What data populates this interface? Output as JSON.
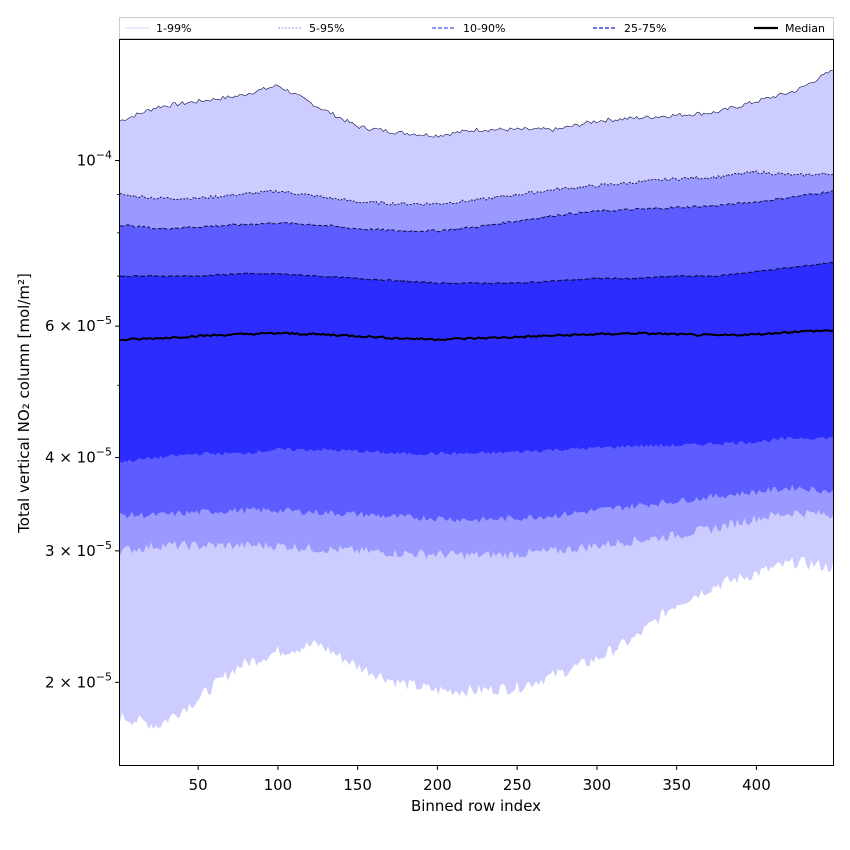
{
  "chart_data": {
    "type": "area",
    "xlabel": "Binned row index",
    "ylabel": "Total vertical NO₂ column [mol/m²]",
    "xlim": [
      1,
      448
    ],
    "ylim": [
      1.55e-05,
      0.000145
    ],
    "yscale": "log",
    "grid": false,
    "legend_position": "top",
    "x_ticks": [
      50,
      100,
      150,
      200,
      250,
      300,
      350,
      400
    ],
    "x_tick_labels": [
      "50",
      "100",
      "150",
      "200",
      "250",
      "300",
      "350",
      "400"
    ],
    "y_ticks": [
      {
        "value": 0.0001,
        "base": "10",
        "exp": "−4"
      },
      {
        "value": 6e-05,
        "base": "6 × 10",
        "exp": "−5"
      },
      {
        "value": 4e-05,
        "base": "4 × 10",
        "exp": "−5"
      },
      {
        "value": 3e-05,
        "base": "3 × 10",
        "exp": "−5"
      },
      {
        "value": 2e-05,
        "base": "2 × 10",
        "exp": "−5"
      }
    ],
    "x": [
      1,
      25,
      50,
      75,
      100,
      125,
      150,
      175,
      200,
      225,
      250,
      275,
      300,
      325,
      350,
      375,
      400,
      425,
      448
    ],
    "bands": [
      {
        "name": "1-99%",
        "color": "#ccccff",
        "upper": [
          0.000113,
          0.000118,
          0.00012,
          0.000122,
          0.000126,
          0.000118,
          0.000111,
          0.000109,
          0.000108,
          0.00011,
          0.00011,
          0.00011,
          0.000113,
          0.000114,
          0.000115,
          0.000116,
          0.00012,
          0.000124,
          0.000132
        ],
        "lower": [
          1.8e-05,
          1.75e-05,
          1.9e-05,
          2.1e-05,
          2.2e-05,
          2.25e-05,
          2.1e-05,
          2e-05,
          1.95e-05,
          1.95e-05,
          1.97e-05,
          2.05e-05,
          2.15e-05,
          2.3e-05,
          2.55e-05,
          2.7e-05,
          2.8e-05,
          2.9e-05,
          2.85e-05
        ]
      },
      {
        "name": "5-95%",
        "color": "#9999ff",
        "upper": [
          9e-05,
          8.9e-05,
          8.9e-05,
          9e-05,
          9.1e-05,
          8.95e-05,
          8.8e-05,
          8.75e-05,
          8.75e-05,
          8.85e-05,
          9e-05,
          9.15e-05,
          9.25e-05,
          9.35e-05,
          9.45e-05,
          9.5e-05,
          9.65e-05,
          9.55e-05,
          9.6e-05
        ],
        "lower": [
          3e-05,
          3.05e-05,
          3.05e-05,
          3.05e-05,
          3.05e-05,
          3.02e-05,
          3e-05,
          2.98e-05,
          2.97e-05,
          2.96e-05,
          2.97e-05,
          3e-05,
          3.05e-05,
          3.1e-05,
          3.15e-05,
          3.22e-05,
          3.32e-05,
          3.38e-05,
          3.35e-05
        ]
      },
      {
        "name": "10-90%",
        "color": "#5c5cff",
        "upper": [
          8.2e-05,
          8.1e-05,
          8.15e-05,
          8.2e-05,
          8.25e-05,
          8.2e-05,
          8.1e-05,
          8.05e-05,
          8.05e-05,
          8.15e-05,
          8.3e-05,
          8.45e-05,
          8.55e-05,
          8.6e-05,
          8.65e-05,
          8.7e-05,
          8.8e-05,
          8.95e-05,
          9.1e-05
        ],
        "lower": [
          3.35e-05,
          3.35e-05,
          3.38e-05,
          3.4e-05,
          3.4e-05,
          3.38e-05,
          3.36e-05,
          3.33e-05,
          3.32e-05,
          3.3e-05,
          3.32e-05,
          3.35e-05,
          3.4e-05,
          3.45e-05,
          3.5e-05,
          3.55e-05,
          3.6e-05,
          3.65e-05,
          3.6e-05
        ]
      },
      {
        "name": "25-75%",
        "color": "#2c2cff",
        "upper": [
          7e-05,
          7e-05,
          7e-05,
          7.05e-05,
          7.05e-05,
          7e-05,
          6.95e-05,
          6.9e-05,
          6.85e-05,
          6.85e-05,
          6.85e-05,
          6.9e-05,
          6.95e-05,
          6.95e-05,
          7e-05,
          7e-05,
          7.1e-05,
          7.2e-05,
          7.3e-05
        ],
        "lower": [
          3.95e-05,
          4e-05,
          4.05e-05,
          4.05e-05,
          4.1e-05,
          4.1e-05,
          4.08e-05,
          4.05e-05,
          4.05e-05,
          4.05e-05,
          4.07e-05,
          4.1e-05,
          4.12e-05,
          4.15e-05,
          4.15e-05,
          4.18e-05,
          4.2e-05,
          4.25e-05,
          4.25e-05
        ]
      }
    ],
    "median": {
      "name": "Median",
      "color": "#000000",
      "values": [
        5.75e-05,
        5.78e-05,
        5.82e-05,
        5.85e-05,
        5.87e-05,
        5.85e-05,
        5.82e-05,
        5.78e-05,
        5.76e-05,
        5.78e-05,
        5.8e-05,
        5.83e-05,
        5.85e-05,
        5.87e-05,
        5.85e-05,
        5.83e-05,
        5.85e-05,
        5.9e-05,
        5.92e-05
      ]
    },
    "legend": [
      {
        "label": "1-99%",
        "style": "solid-faint",
        "color": "#c8c8f0"
      },
      {
        "label": "5-95%",
        "style": "dotted",
        "color": "#9a9ad8"
      },
      {
        "label": "10-90%",
        "style": "dashed",
        "color": "#6b6bff"
      },
      {
        "label": "25-75%",
        "style": "dashed",
        "color": "#4040e0"
      },
      {
        "label": "Median",
        "style": "solid",
        "color": "#000000"
      }
    ]
  }
}
